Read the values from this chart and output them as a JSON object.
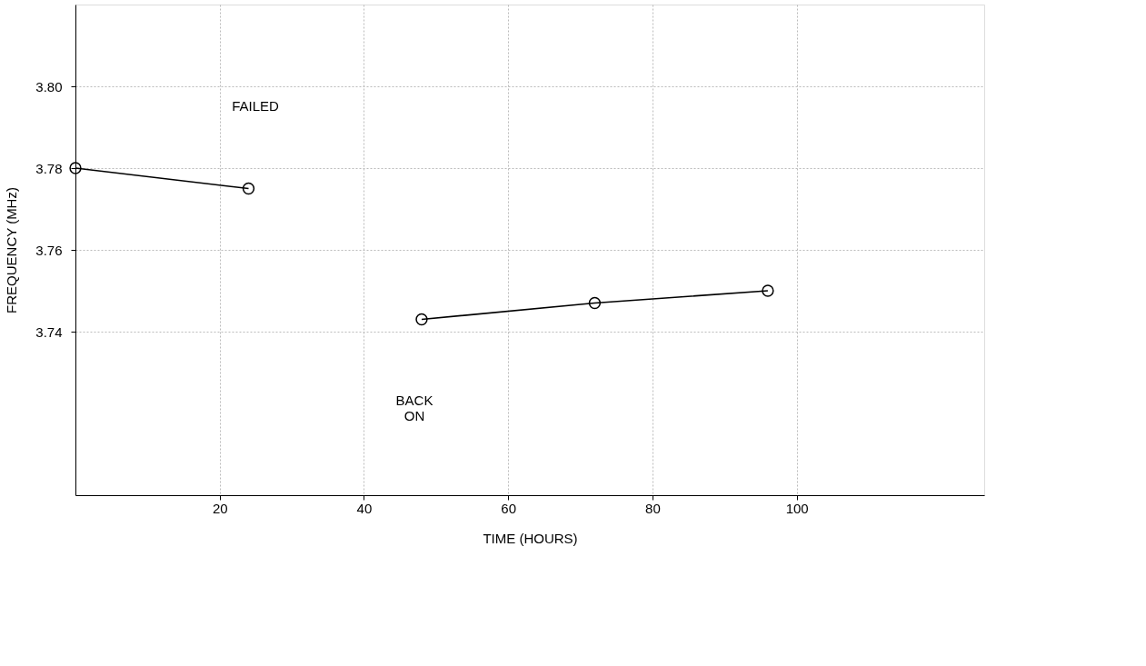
{
  "chart_data": {
    "type": "line",
    "xlabel": "TIME (HOURS)",
    "ylabel": "FREQUENCY (MHz)",
    "series": [
      {
        "color": "#000000",
        "x": [
          0,
          24
        ],
        "values": [
          3.78,
          3.775
        ]
      },
      {
        "color": "#000000",
        "x": [
          48,
          72,
          96
        ],
        "values": [
          3.743,
          3.747,
          3.75
        ]
      }
    ],
    "xlim": [
      0,
      126
    ],
    "xticks": [
      20,
      40,
      60,
      80,
      100
    ],
    "ylim": [
      3.7,
      3.82
    ],
    "yticks": [
      3.74,
      3.76,
      3.78,
      {
        "value": 3.8,
        "label": "3.80"
      }
    ],
    "annotations": [
      "FAILED",
      "BACK ON"
    ],
    "grid": true,
    "marker": "circle",
    "line_style": "solid"
  }
}
